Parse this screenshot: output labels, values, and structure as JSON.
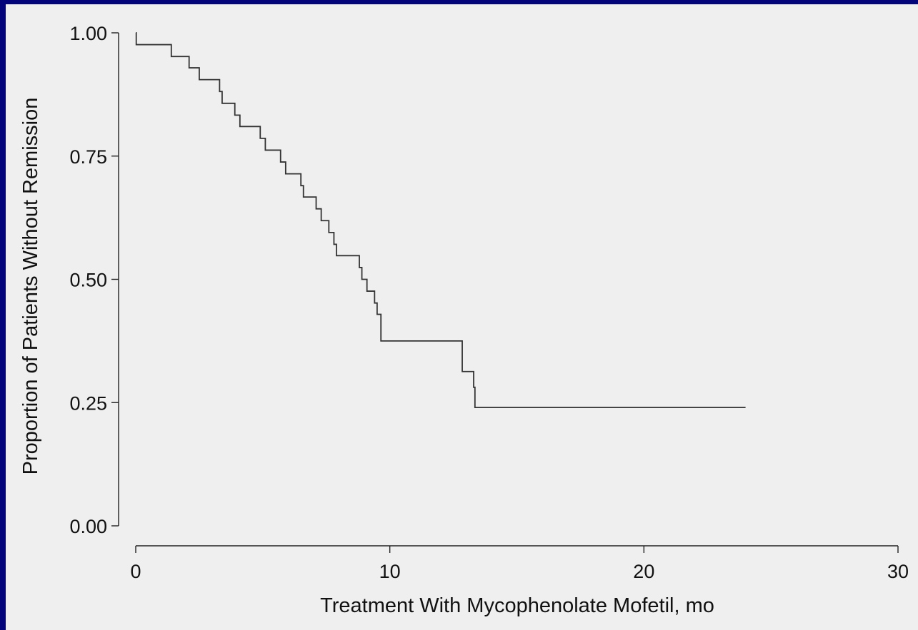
{
  "chart_data": {
    "type": "line",
    "title": "",
    "xlabel": "Treatment With Mycophenolate Mofetil, mo",
    "ylabel": "Proportion of Patients Without Remission",
    "xlim": [
      0,
      30
    ],
    "ylim": [
      0,
      1
    ],
    "x_ticks": [
      "0",
      "10",
      "20",
      "30"
    ],
    "y_ticks": [
      "0.00",
      "0.25",
      "0.50",
      "0.75",
      "1.00"
    ],
    "x_tick_values": [
      0,
      10,
      20,
      30
    ],
    "y_tick_values": [
      0,
      0.25,
      0.5,
      0.75,
      1.0
    ],
    "grid": false,
    "legend": "none",
    "step": true,
    "series": [
      {
        "x": [
          0,
          0.02,
          1.4,
          2.1,
          2.5,
          3.3,
          3.4,
          3.6,
          3.9,
          4.1,
          4.9,
          5.1,
          5.3,
          5.7,
          5.8,
          5.9,
          6.1,
          6.5,
          6.6,
          6.7,
          7.1,
          7.3,
          7.6,
          7.8,
          7.9,
          8.8,
          8.9,
          9.1,
          9.4,
          9.5,
          9.65,
          12.75,
          12.85,
          13.2,
          13.3,
          13.35,
          24.0
        ],
        "y": [
          1.0,
          0.976,
          0.952,
          0.929,
          0.905,
          0.881,
          0.857,
          0.857,
          0.833,
          0.81,
          0.786,
          0.762,
          0.762,
          0.738,
          0.738,
          0.714,
          0.714,
          0.69,
          0.667,
          0.667,
          0.643,
          0.619,
          0.595,
          0.571,
          0.548,
          0.524,
          0.5,
          0.476,
          0.452,
          0.429,
          0.375,
          0.375,
          0.313,
          0.313,
          0.281,
          0.24,
          0.24
        ],
        "color": "#333333"
      }
    ]
  }
}
